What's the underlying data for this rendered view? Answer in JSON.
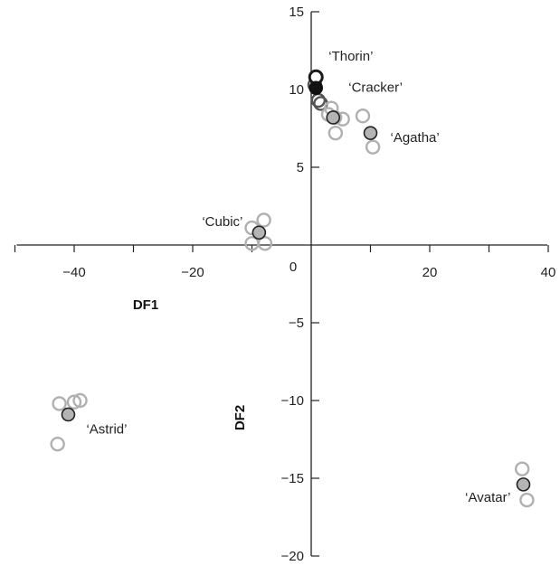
{
  "chart_data": {
    "type": "scatter",
    "xlabel": "DF1",
    "ylabel": "DF2",
    "xlim": [
      -50,
      40
    ],
    "ylim": [
      -20,
      15
    ],
    "x_ticks": [
      -40,
      -20,
      0,
      20,
      40
    ],
    "x_tick_labels": [
      "−40",
      "−20",
      "0",
      "20",
      "40"
    ],
    "y_ticks": [
      -20,
      -15,
      -10,
      -5,
      5,
      10,
      15
    ],
    "y_tick_labels": [
      "−20",
      "−15",
      "−10",
      "−5",
      "5",
      "10",
      "15"
    ],
    "grid": false,
    "colors": {
      "replicate_open": "#b0b0b0",
      "centroid_fill": "#b4b4b4",
      "thorin_stroke": "#1a1a1a",
      "cracker_fill": "#111111",
      "cracker_open": "#555555",
      "outline": "#222222"
    },
    "groups": [
      {
        "label": "‘Thorin’",
        "centroid": [
          0.8,
          10.8
        ],
        "centroid_style": "open-dark",
        "replicates": []
      },
      {
        "label": "‘Cracker’",
        "centroid": [
          0.8,
          10.1
        ],
        "centroid_style": "filled-dark",
        "replicates": [
          [
            1.2,
            9.3
          ],
          [
            1.6,
            9.1
          ],
          [
            0.6,
            10.3
          ]
        ]
      },
      {
        "label": "‘Agatha’",
        "centroid": [
          10.0,
          7.2
        ],
        "centroid_style": "filled-grey",
        "replicates": [
          [
            3.4,
            8.8
          ],
          [
            2.9,
            8.4
          ],
          [
            5.3,
            8.1
          ],
          [
            4.1,
            7.2
          ],
          [
            8.7,
            8.3
          ],
          [
            10.4,
            6.3
          ],
          [
            4.0,
            8.2
          ]
        ]
      },
      {
        "label": "‘Cubic’",
        "centroid": [
          -8.8,
          0.8
        ],
        "centroid_style": "filled-grey",
        "replicates": [
          [
            -8.0,
            1.6
          ],
          [
            -10.0,
            1.1
          ],
          [
            -10.0,
            0.1
          ],
          [
            -7.8,
            0.1
          ]
        ]
      },
      {
        "label": "‘Astrid’",
        "centroid": [
          -41.0,
          -10.9
        ],
        "centroid_style": "filled-grey",
        "replicates": [
          [
            -42.5,
            -10.2
          ],
          [
            -40.0,
            -10.1
          ],
          [
            -39.0,
            -10.0
          ],
          [
            -42.8,
            -12.8
          ]
        ]
      },
      {
        "label": "‘Avatar’",
        "centroid": [
          35.8,
          -15.4
        ],
        "centroid_style": "filled-grey",
        "replicates": [
          [
            35.6,
            -14.4
          ],
          [
            36.4,
            -16.4
          ]
        ]
      }
    ],
    "extra_centroids": [
      {
        "point": [
          3.7,
          8.2
        ],
        "style": "filled-grey"
      }
    ]
  }
}
